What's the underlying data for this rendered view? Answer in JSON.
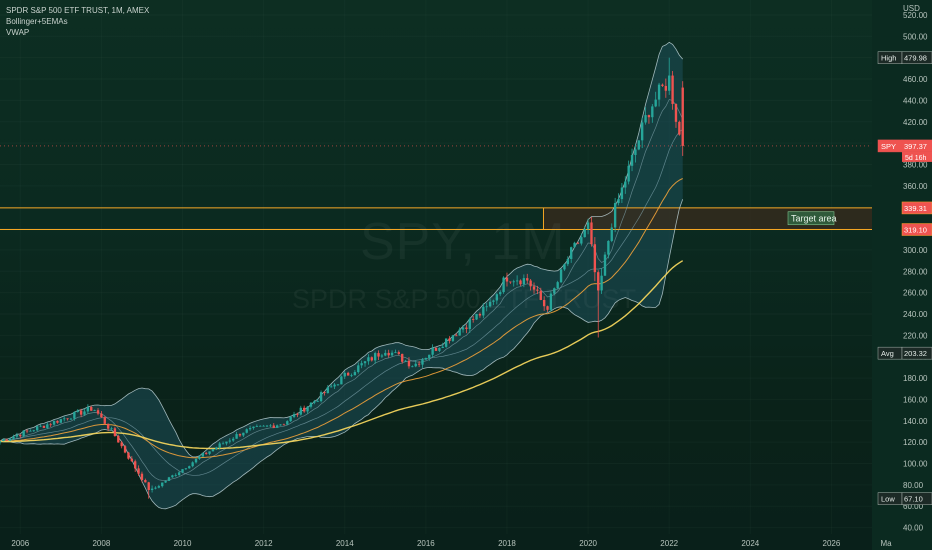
{
  "legend": {
    "title": "SPDR S&P 500 ETF TRUST, 1M, AMEX",
    "indicator1": "Bollinger+5EMAs",
    "indicator2": "VWAP"
  },
  "watermark": {
    "symbol": "SPY, 1M",
    "name": "SPDR S&P 500 ETF TRUST"
  },
  "colors": {
    "up": "#26a69a",
    "down": "#ef5350",
    "band_fill": "#1e4f5a",
    "band_line": "#c4d9df",
    "ema_orange": "#f0a23a",
    "ema_yellow": "#f2d45c",
    "zone_border": "#f5a623",
    "zone_fill": "#3a2b1c"
  },
  "chart_data": {
    "type": "candlestick",
    "interval": "1M",
    "symbol": "SPY",
    "currency_label": "USD",
    "x_ticks": [
      "2006",
      "2008",
      "2010",
      "2012",
      "2014",
      "2016",
      "2018",
      "2020",
      "2022",
      "2024",
      "2026",
      "Ma"
    ],
    "y_ticks": [
      "40.00",
      "60.00",
      "80.00",
      "100.00",
      "120.00",
      "140.00",
      "160.00",
      "180.00",
      "200.00",
      "220.00",
      "240.00",
      "260.00",
      "280.00",
      "300.00",
      "320.00",
      "340.00",
      "360.00",
      "380.00",
      "400.00",
      "420.00",
      "440.00",
      "460.00",
      "480.00",
      "500.00",
      "520.00"
    ],
    "ylim": [
      34,
      534
    ],
    "xlim": [
      2005.5,
      2027.0
    ],
    "axis_labels": [
      {
        "name": "High",
        "value": "479.98",
        "price": 479.98
      },
      {
        "name": "SPY",
        "value": "397.37",
        "sub": "5d 16h",
        "price": 397.37
      },
      {
        "name": "",
        "value": "339.31",
        "price": 339.31
      },
      {
        "name": "",
        "value": "319.10",
        "price": 319.1
      },
      {
        "name": "Avg",
        "value": "203.32",
        "price": 203.32
      },
      {
        "name": "Low",
        "value": "67.10",
        "price": 67.1
      }
    ],
    "target_zone": {
      "label": "Target area",
      "top": 339.31,
      "bottom": 319.1,
      "x_start": 2018.9
    },
    "current_price": 397.37,
    "series": [
      {
        "name": "",
        "t": [
          2005.5,
          2007.8,
          2008.3,
          2009.2,
          2010.5,
          2011.5,
          2012.5,
          2013.3,
          2014.0,
          2015.0,
          2015.7,
          2016.5,
          2017.5,
          2018.0,
          2018.5,
          2018.97,
          2019.5,
          2020.0,
          2020.25,
          2020.6,
          2021.0,
          2021.5,
          2022.0,
          2022.3
        ],
        "close": [
          121,
          152,
          128,
          74,
          108,
          130,
          138,
          160,
          182,
          207,
          192,
          216,
          245,
          275,
          272,
          245,
          292,
          322,
          257,
          330,
          375,
          432,
          460,
          397
        ]
      }
    ],
    "indicators": [
      "Bollinger Bands",
      "EMAs",
      "VWAP"
    ]
  }
}
